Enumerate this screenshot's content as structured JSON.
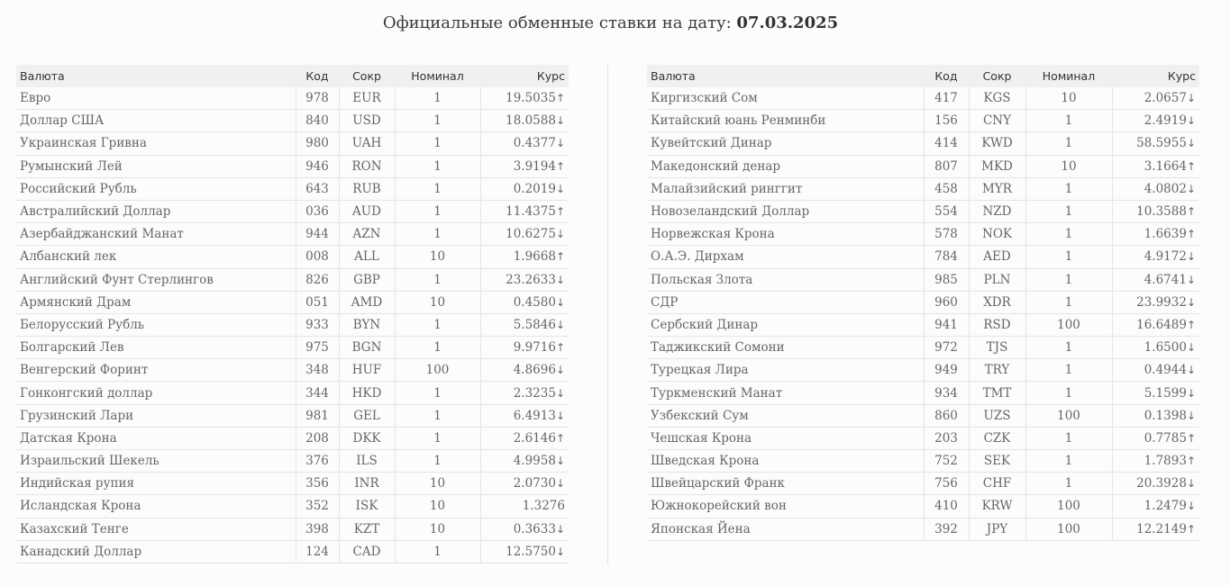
{
  "header": {
    "title_prefix": "Официальные обменные ставки на дату:",
    "date": "07.03.2025"
  },
  "columns": {
    "name": "Валюта",
    "code": "Код",
    "abbr": "Сокр",
    "nominal": "Номинал",
    "rate": "Курс"
  },
  "colors": {
    "up": "#2aa56a",
    "down": "#e2481a",
    "flat": "#666666"
  },
  "left_table": [
    {
      "name": "Евро",
      "code": "978",
      "abbr": "EUR",
      "nominal": "1",
      "rate": "19.5035",
      "trend": "up"
    },
    {
      "name": "Доллар США",
      "code": "840",
      "abbr": "USD",
      "nominal": "1",
      "rate": "18.0588",
      "trend": "down"
    },
    {
      "name": "Украинская Гривна",
      "code": "980",
      "abbr": "UAH",
      "nominal": "1",
      "rate": "0.4377",
      "trend": "down"
    },
    {
      "name": "Румынский Лей",
      "code": "946",
      "abbr": "RON",
      "nominal": "1",
      "rate": "3.9194",
      "trend": "up"
    },
    {
      "name": "Российский Рубль",
      "code": "643",
      "abbr": "RUB",
      "nominal": "1",
      "rate": "0.2019",
      "trend": "down"
    },
    {
      "name": "Австралийский Доллар",
      "code": "036",
      "abbr": "AUD",
      "nominal": "1",
      "rate": "11.4375",
      "trend": "up"
    },
    {
      "name": "Азербайджанский Манат",
      "code": "944",
      "abbr": "AZN",
      "nominal": "1",
      "rate": "10.6275",
      "trend": "down"
    },
    {
      "name": "Албанский лек",
      "code": "008",
      "abbr": "ALL",
      "nominal": "10",
      "rate": "1.9668",
      "trend": "up"
    },
    {
      "name": "Английский Фунт Стерлингов",
      "code": "826",
      "abbr": "GBP",
      "nominal": "1",
      "rate": "23.2633",
      "trend": "down"
    },
    {
      "name": "Армянский Драм",
      "code": "051",
      "abbr": "AMD",
      "nominal": "10",
      "rate": "0.4580",
      "trend": "down"
    },
    {
      "name": "Белорусский Рубль",
      "code": "933",
      "abbr": "BYN",
      "nominal": "1",
      "rate": "5.5846",
      "trend": "down"
    },
    {
      "name": "Болгарский Лев",
      "code": "975",
      "abbr": "BGN",
      "nominal": "1",
      "rate": "9.9716",
      "trend": "up"
    },
    {
      "name": "Венгерский Форинт",
      "code": "348",
      "abbr": "HUF",
      "nominal": "100",
      "rate": "4.8696",
      "trend": "down"
    },
    {
      "name": "Гонконгский доллар",
      "code": "344",
      "abbr": "HKD",
      "nominal": "1",
      "rate": "2.3235",
      "trend": "down"
    },
    {
      "name": "Грузинский Лари",
      "code": "981",
      "abbr": "GEL",
      "nominal": "1",
      "rate": "6.4913",
      "trend": "down"
    },
    {
      "name": "Датская Крона",
      "code": "208",
      "abbr": "DKK",
      "nominal": "1",
      "rate": "2.6146",
      "trend": "up"
    },
    {
      "name": "Израильский Шекель",
      "code": "376",
      "abbr": "ILS",
      "nominal": "1",
      "rate": "4.9958",
      "trend": "down"
    },
    {
      "name": "Индийская рупия",
      "code": "356",
      "abbr": "INR",
      "nominal": "10",
      "rate": "2.0730",
      "trend": "down"
    },
    {
      "name": "Исландская Крона",
      "code": "352",
      "abbr": "ISK",
      "nominal": "10",
      "rate": "1.3276",
      "trend": "flat"
    },
    {
      "name": "Казахский Тенге",
      "code": "398",
      "abbr": "KZT",
      "nominal": "10",
      "rate": "0.3633",
      "trend": "down"
    },
    {
      "name": "Канадский Доллар",
      "code": "124",
      "abbr": "CAD",
      "nominal": "1",
      "rate": "12.5750",
      "trend": "down"
    }
  ],
  "right_table": [
    {
      "name": "Киргизский Сом",
      "code": "417",
      "abbr": "KGS",
      "nominal": "10",
      "rate": "2.0657",
      "trend": "down"
    },
    {
      "name": "Китайский юань Ренминби",
      "code": "156",
      "abbr": "CNY",
      "nominal": "1",
      "rate": "2.4919",
      "trend": "down"
    },
    {
      "name": "Кувейтский Динар",
      "code": "414",
      "abbr": "KWD",
      "nominal": "1",
      "rate": "58.5955",
      "trend": "down"
    },
    {
      "name": "Македонский денар",
      "code": "807",
      "abbr": "MKD",
      "nominal": "10",
      "rate": "3.1664",
      "trend": "up"
    },
    {
      "name": "Малайзийский ринггит",
      "code": "458",
      "abbr": "MYR",
      "nominal": "1",
      "rate": "4.0802",
      "trend": "down"
    },
    {
      "name": "Новозеландский Доллар",
      "code": "554",
      "abbr": "NZD",
      "nominal": "1",
      "rate": "10.3588",
      "trend": "up"
    },
    {
      "name": "Норвежская Крона",
      "code": "578",
      "abbr": "NOK",
      "nominal": "1",
      "rate": "1.6639",
      "trend": "up"
    },
    {
      "name": "О.А.Э. Дирхам",
      "code": "784",
      "abbr": "AED",
      "nominal": "1",
      "rate": "4.9172",
      "trend": "down"
    },
    {
      "name": "Польская Злота",
      "code": "985",
      "abbr": "PLN",
      "nominal": "1",
      "rate": "4.6741",
      "trend": "down"
    },
    {
      "name": "СДР",
      "code": "960",
      "abbr": "XDR",
      "nominal": "1",
      "rate": "23.9932",
      "trend": "down"
    },
    {
      "name": "Сербский Динар",
      "code": "941",
      "abbr": "RSD",
      "nominal": "100",
      "rate": "16.6489",
      "trend": "up"
    },
    {
      "name": "Таджикский Сомони",
      "code": "972",
      "abbr": "TJS",
      "nominal": "1",
      "rate": "1.6500",
      "trend": "down"
    },
    {
      "name": "Турецкая Лира",
      "code": "949",
      "abbr": "TRY",
      "nominal": "1",
      "rate": "0.4944",
      "trend": "down"
    },
    {
      "name": "Туркменский Манат",
      "code": "934",
      "abbr": "TMT",
      "nominal": "1",
      "rate": "5.1599",
      "trend": "down"
    },
    {
      "name": "Узбекский Сум",
      "code": "860",
      "abbr": "UZS",
      "nominal": "100",
      "rate": "0.1398",
      "trend": "down"
    },
    {
      "name": "Чешская Крона",
      "code": "203",
      "abbr": "CZK",
      "nominal": "1",
      "rate": "0.7785",
      "trend": "up"
    },
    {
      "name": "Шведская Крона",
      "code": "752",
      "abbr": "SEK",
      "nominal": "1",
      "rate": "1.7893",
      "trend": "up"
    },
    {
      "name": "Швейцарский Франк",
      "code": "756",
      "abbr": "CHF",
      "nominal": "1",
      "rate": "20.3928",
      "trend": "down"
    },
    {
      "name": "Южнокорейский вон",
      "code": "410",
      "abbr": "KRW",
      "nominal": "100",
      "rate": "1.2479",
      "trend": "down"
    },
    {
      "name": "Японская Йена",
      "code": "392",
      "abbr": "JPY",
      "nominal": "100",
      "rate": "12.2149",
      "trend": "up"
    }
  ]
}
